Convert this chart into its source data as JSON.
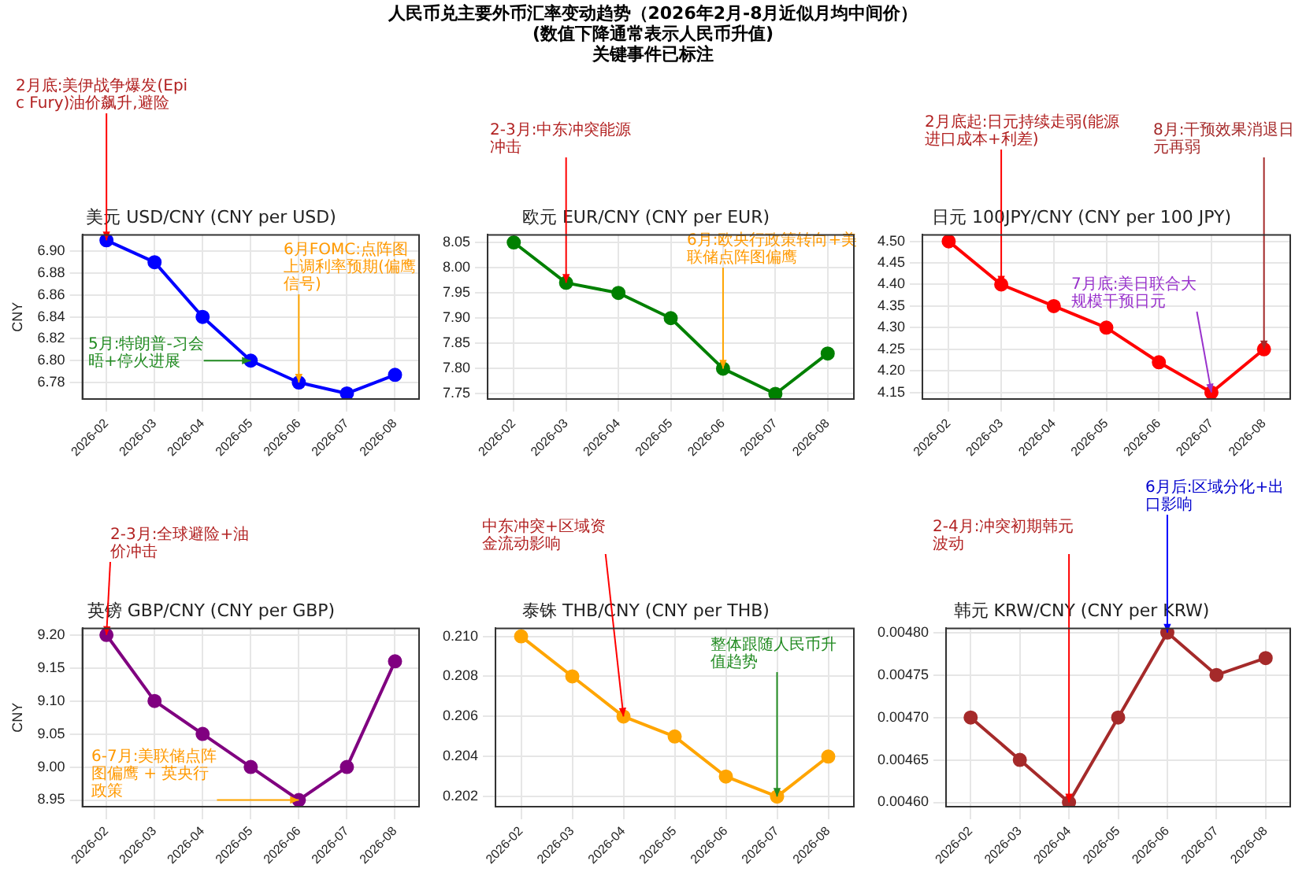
{
  "chart_data": [
    {
      "type": "other",
      "title": "人民币兑主要外币汇率变动趋势（2026年2月-8月近似月均中间价）",
      "subtitle": "(数值下降通常表示人民币升值)\n关键事件已标注"
    },
    {
      "type": "line",
      "title": "美元 USD/CNY (CNY per USD)",
      "ylabel": "CNY",
      "categories": [
        "2026-02",
        "2026-03",
        "2026-04",
        "2026-05",
        "2026-06",
        "2026-07",
        "2026-08"
      ],
      "series": [
        {
          "color": "#0000ff",
          "values": [
            6.91,
            6.89,
            6.84,
            6.8,
            6.78,
            6.77,
            6.787
          ]
        }
      ],
      "ylim": [
        6.765,
        6.915
      ],
      "yticks": [
        {
          "value": 6.78,
          "label": "6.78"
        },
        {
          "value": 6.8,
          "label": "6.80"
        },
        {
          "value": 6.82,
          "label": "6.82"
        },
        {
          "value": 6.84,
          "label": "6.84"
        },
        {
          "value": 6.86,
          "label": "6.86"
        },
        {
          "value": 6.88,
          "label": "6.88"
        },
        {
          "value": 6.9,
          "label": "6.90"
        }
      ],
      "grid": true,
      "marker": "circle",
      "annotations": [
        {
          "text": "2月底:美伊战争爆发(Epic Fury)油价飙升,避险",
          "x": "2026-02",
          "y": 6.91
        },
        {
          "text": "5月:特朗普-习会晤+停火进展",
          "x": "2026-05",
          "y": 6.8
        },
        {
          "text": "6月FOMC:点阵图上调利率预期(偏鹰信号)",
          "x": "2026-06",
          "y": 6.78
        }
      ]
    },
    {
      "type": "line",
      "title": "欧元 EUR/CNY (CNY per EUR)",
      "categories": [
        "2026-02",
        "2026-03",
        "2026-04",
        "2026-05",
        "2026-06",
        "2026-07",
        "2026-08"
      ],
      "series": [
        {
          "color": "#008000",
          "values": [
            8.05,
            7.97,
            7.95,
            7.9,
            7.8,
            7.75,
            7.83
          ]
        }
      ],
      "ylim": [
        7.74,
        8.065
      ],
      "yticks": [
        {
          "value": 7.75,
          "label": "7.75"
        },
        {
          "value": 7.8,
          "label": "7.80"
        },
        {
          "value": 7.85,
          "label": "7.85"
        },
        {
          "value": 7.9,
          "label": "7.90"
        },
        {
          "value": 7.95,
          "label": "7.95"
        },
        {
          "value": 8,
          "label": "8.00"
        },
        {
          "value": 8.05,
          "label": "8.05"
        }
      ],
      "grid": true,
      "marker": "circle",
      "annotations": [
        {
          "text": "2-3月:中东冲突能源冲击",
          "x": "2026-03",
          "y": 7.97
        },
        {
          "text": "6月:欧央行政策转向+美联储点阵图偏鹰",
          "x": "2026-06",
          "y": 7.8
        }
      ]
    },
    {
      "type": "line",
      "title": "日元 100JPY/CNY (CNY per 100 JPY)",
      "categories": [
        "2026-02",
        "2026-03",
        "2026-04",
        "2026-05",
        "2026-06",
        "2026-07",
        "2026-08"
      ],
      "series": [
        {
          "color": "#ff0000",
          "values": [
            4.5,
            4.4,
            4.35,
            4.3,
            4.22,
            4.15,
            4.25
          ]
        }
      ],
      "ylim": [
        4.135,
        4.515
      ],
      "yticks": [
        {
          "value": 4.15,
          "label": "4.15"
        },
        {
          "value": 4.2,
          "label": "4.20"
        },
        {
          "value": 4.25,
          "label": "4.25"
        },
        {
          "value": 4.3,
          "label": "4.30"
        },
        {
          "value": 4.35,
          "label": "4.35"
        },
        {
          "value": 4.4,
          "label": "4.40"
        },
        {
          "value": 4.45,
          "label": "4.45"
        },
        {
          "value": 4.5,
          "label": "4.50"
        }
      ],
      "grid": true,
      "marker": "circle",
      "annotations": [
        {
          "text": "2月底起:日元持续走弱(能源进口成本+利差)",
          "x": "2026-03",
          "y": 4.4
        },
        {
          "text": "7月底:美日联合大规模干预日元",
          "x": "2026-07",
          "y": 4.15
        },
        {
          "text": "8月:干预效果消退日元再弱",
          "x": "2026-08",
          "y": 4.25
        }
      ]
    },
    {
      "type": "line",
      "title": "英镑 GBP/CNY (CNY per GBP)",
      "ylabel": "CNY",
      "categories": [
        "2026-02",
        "2026-03",
        "2026-04",
        "2026-05",
        "2026-06",
        "2026-07",
        "2026-08"
      ],
      "series": [
        {
          "color": "#800080",
          "values": [
            9.2,
            9.1,
            9.05,
            9.0,
            8.95,
            9.0,
            9.16
          ]
        }
      ],
      "ylim": [
        8.94,
        9.21
      ],
      "yticks": [
        {
          "value": 8.95,
          "label": "8.95"
        },
        {
          "value": 9,
          "label": "9.00"
        },
        {
          "value": 9.05,
          "label": "9.05"
        },
        {
          "value": 9.1,
          "label": "9.10"
        },
        {
          "value": 9.15,
          "label": "9.15"
        },
        {
          "value": 9.2,
          "label": "9.20"
        }
      ],
      "grid": true,
      "marker": "circle",
      "annotations": [
        {
          "text": "2-3月:全球避险+油价冲击",
          "x": "2026-02",
          "y": 9.2
        },
        {
          "text": "6-7月:美联储点阵图偏鹰 + 英央行政策",
          "x": "2026-06",
          "y": 8.95
        }
      ]
    },
    {
      "type": "line",
      "title": "泰铢 THB/CNY (CNY per THB)",
      "categories": [
        "2026-02",
        "2026-03",
        "2026-04",
        "2026-05",
        "2026-06",
        "2026-07",
        "2026-08"
      ],
      "series": [
        {
          "color": "#ffa500",
          "values": [
            0.21,
            0.208,
            0.206,
            0.205,
            0.203,
            0.202,
            0.204
          ]
        }
      ],
      "ylim": [
        0.2015,
        0.2104
      ],
      "yticks": [
        {
          "value": 0.202,
          "label": "0.202"
        },
        {
          "value": 0.204,
          "label": "0.204"
        },
        {
          "value": 0.206,
          "label": "0.206"
        },
        {
          "value": 0.208,
          "label": "0.208"
        },
        {
          "value": 0.21,
          "label": "0.210"
        }
      ],
      "grid": true,
      "marker": "circle",
      "annotations": [
        {
          "text": "中东冲突+区域资金流动影响",
          "x": "2026-04",
          "y": 0.206
        },
        {
          "text": "整体跟随人民币升值趋势",
          "x": "2026-07",
          "y": 0.202
        }
      ]
    },
    {
      "type": "line",
      "title": "韩元 KRW/CNY (CNY per KRW)",
      "categories": [
        "2026-02",
        "2026-03",
        "2026-04",
        "2026-05",
        "2026-06",
        "2026-07",
        "2026-08"
      ],
      "series": [
        {
          "color": "#a52a2a",
          "values": [
            0.0047,
            0.00465,
            0.0046,
            0.0047,
            0.0048,
            0.00475,
            0.00477
          ]
        }
      ],
      "ylim": [
        0.004595,
        0.004805
      ],
      "yticks": [
        {
          "value": 0.0046,
          "label": "0.00460"
        },
        {
          "value": 0.00465,
          "label": "0.00465"
        },
        {
          "value": 0.0047,
          "label": "0.00470"
        },
        {
          "value": 0.00475,
          "label": "0.00475"
        },
        {
          "value": 0.0048,
          "label": "0.00480"
        }
      ],
      "grid": true,
      "marker": "circle",
      "annotations": [
        {
          "text": "2-4月:冲突初期韩元波动",
          "x": "2026-04",
          "y": 0.0046
        },
        {
          "text": "6月后:区域分化+出口影响",
          "x": "2026-06",
          "y": 0.0048
        }
      ]
    }
  ]
}
